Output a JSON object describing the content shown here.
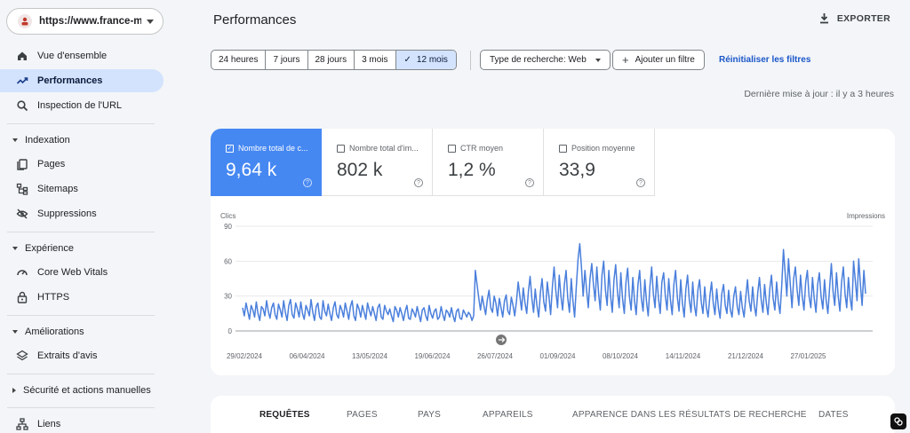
{
  "property": {
    "url": "https://www.france-me..."
  },
  "nav": {
    "overview": "Vue d'ensemble",
    "performance": "Performances",
    "url_inspection": "Inspection de l'URL",
    "indexing": "Indexation",
    "pages": "Pages",
    "sitemaps": "Sitemaps",
    "removals": "Suppressions",
    "experience": "Expérience",
    "core_web_vitals": "Core Web Vitals",
    "https": "HTTPS",
    "enhancements": "Améliorations",
    "review_snippets": "Extraits d'avis",
    "security": "Sécurité et actions manuelles",
    "links": "Liens"
  },
  "header": {
    "title": "Performances",
    "export": "EXPORTER"
  },
  "filters": {
    "ranges": [
      "24 heures",
      "7 jours",
      "28 jours",
      "3 mois",
      "12 mois"
    ],
    "selected_range": "12 mois",
    "search_type": "Type de recherche: Web",
    "add_filter": "Ajouter un filtre",
    "reset": "Réinitialiser les filtres"
  },
  "last_update": "Dernière mise à jour : il y a 3 heures",
  "metrics": [
    {
      "label": "Nombre total de c...",
      "value": "9,64 k",
      "checked": true
    },
    {
      "label": "Nombre total d'im...",
      "value": "802 k",
      "checked": false
    },
    {
      "label": "CTR moyen",
      "value": "1,2 %",
      "checked": false
    },
    {
      "label": "Position moyenne",
      "value": "33,9",
      "checked": false
    }
  ],
  "chart_data": {
    "type": "line",
    "ylabel_left": "Clics",
    "ylabel_right": "Impressions",
    "yticks": [
      0,
      30,
      60,
      90
    ],
    "ylim": [
      0,
      90
    ],
    "xticks": [
      "29/02/2024",
      "06/04/2024",
      "13/05/2024",
      "19/06/2024",
      "26/07/2024",
      "01/09/2024",
      "08/10/2024",
      "14/11/2024",
      "21/12/2024",
      "27/01/2025"
    ],
    "grid": true,
    "series": [
      {
        "color": "#4a7fdc",
        "values": [
          20,
          13,
          24,
          17,
          10,
          22,
          18,
          12,
          25,
          15,
          9,
          21,
          19,
          13,
          26,
          17,
          11,
          20,
          24,
          14,
          10,
          23,
          18,
          12,
          26,
          16,
          9,
          22,
          27,
          14,
          11,
          24,
          19,
          12,
          25,
          15,
          10,
          22,
          18,
          13,
          27,
          16,
          9,
          21,
          24,
          12,
          10,
          26,
          17,
          13,
          23,
          15,
          9,
          20,
          25,
          14,
          11,
          22,
          18,
          12,
          24,
          17,
          10,
          21,
          26,
          13,
          9,
          23,
          19,
          12,
          22,
          16,
          10,
          24,
          18,
          13,
          21,
          15,
          9,
          20,
          23,
          12,
          10,
          22,
          17,
          14,
          19,
          13,
          8,
          21,
          18,
          12,
          20,
          15,
          9,
          17,
          22,
          11,
          10,
          19,
          16,
          12,
          21,
          14,
          8,
          18,
          20,
          13,
          9,
          22,
          15,
          11,
          17,
          19,
          10,
          12,
          21,
          14,
          9,
          18,
          16,
          12,
          20,
          13,
          8,
          17,
          19,
          11,
          10,
          18,
          15,
          12,
          16,
          14,
          9,
          13,
          52,
          40,
          28,
          18,
          30,
          22,
          14,
          27,
          35,
          20,
          16,
          30,
          24,
          13,
          28,
          20,
          12,
          26,
          31,
          17,
          14,
          29,
          22,
          13,
          25,
          42,
          30,
          18,
          37,
          24,
          15,
          34,
          47,
          28,
          16,
          36,
          22,
          12,
          33,
          45,
          25,
          17,
          42,
          30,
          14,
          38,
          55,
          35,
          20,
          48,
          30,
          18,
          40,
          52,
          28,
          16,
          45,
          26,
          12,
          38,
          62,
          75,
          55,
          30,
          52,
          35,
          20,
          45,
          58,
          40,
          26,
          55,
          32,
          18,
          48,
          60,
          35,
          22,
          52,
          30,
          16,
          44,
          57,
          34,
          20,
          50,
          28,
          15,
          42,
          54,
          30,
          18,
          46,
          26,
          14,
          40,
          52,
          28,
          17,
          44,
          25,
          13,
          38,
          55,
          32,
          20,
          47,
          28,
          15,
          42,
          50,
          30,
          18,
          45,
          26,
          14,
          40,
          52,
          29,
          17,
          44,
          24,
          12,
          36,
          48,
          27,
          16,
          42,
          22,
          13,
          35,
          44,
          25,
          15,
          38,
          20,
          12,
          30,
          42,
          24,
          14,
          36,
          20,
          11,
          32,
          40,
          22,
          15,
          35,
          18,
          12,
          30,
          38,
          21,
          14,
          34,
          20,
          12,
          29,
          44,
          26,
          17,
          38,
          22,
          13,
          33,
          46,
          27,
          16,
          40,
          24,
          14,
          36,
          48,
          28,
          18,
          42,
          25,
          15,
          38,
          70,
          50,
          30,
          62,
          40,
          20,
          45,
          55,
          35,
          22,
          48,
          30,
          18,
          42,
          52,
          30,
          20,
          46,
          28,
          16,
          40,
          50,
          30,
          19,
          44,
          26,
          15,
          38,
          58,
          34,
          22,
          50,
          30,
          17,
          42,
          55,
          32,
          20,
          46,
          28,
          18,
          60,
          44,
          26,
          62,
          40,
          22,
          52,
          32
        ]
      }
    ]
  },
  "tabs": [
    "REQUÊTES",
    "PAGES",
    "PAYS",
    "APPAREILS",
    "APPARENCE DANS LES RÉSULTATS DE RECHERCHE",
    "DATES"
  ]
}
